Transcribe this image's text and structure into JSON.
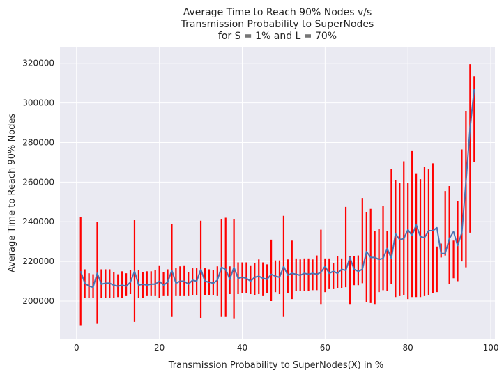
{
  "chart_data": {
    "type": "line",
    "title": [
      "Average Time to Reach 90% Nodes v/s",
      "Transmission Probability to SuperNodes",
      "for S = 1% and L = 70%"
    ],
    "xlabel": "Transmission Probability to SuperNodes(X) in %",
    "ylabel": "Average Time to Reach 90% Nodes",
    "xlim": [
      -4,
      101
    ],
    "ylim": [
      181000,
      328000
    ],
    "xticks": [
      0,
      20,
      40,
      60,
      80,
      100
    ],
    "yticks": [
      200000,
      220000,
      240000,
      260000,
      280000,
      300000,
      320000
    ],
    "xtick_labels": [
      "0",
      "20",
      "40",
      "60",
      "80",
      "100"
    ],
    "ytick_labels": [
      "200000",
      "220000",
      "240000",
      "260000",
      "280000",
      "300000",
      "320000"
    ],
    "grid": true,
    "colors": {
      "line": "#4c72b0",
      "errorbar": "#ff0000",
      "background": "#eaeaf2",
      "grid": "#ffffff"
    },
    "series": [
      {
        "x": [
          1,
          2,
          3,
          4,
          5,
          6,
          7,
          8,
          9,
          10,
          11,
          12,
          13,
          14,
          15,
          16,
          17,
          18,
          19,
          20,
          21,
          22,
          23,
          24,
          25,
          26,
          27,
          28,
          29,
          30,
          31,
          32,
          33,
          34,
          35,
          36,
          37,
          38,
          39,
          40,
          41,
          42,
          43,
          44,
          45,
          46,
          47,
          48,
          49,
          50,
          51,
          52,
          53,
          54,
          55,
          56,
          57,
          58,
          59,
          60,
          61,
          62,
          63,
          64,
          65,
          66,
          67,
          68,
          69,
          70,
          71,
          72,
          73,
          74,
          75,
          76,
          77,
          78,
          79,
          80,
          81,
          82,
          83,
          84,
          85,
          86,
          87,
          88,
          89,
          90,
          91,
          92,
          93,
          94,
          95,
          96
        ],
        "y": [
          215000,
          209000,
          207500,
          207000,
          214000,
          208500,
          209000,
          209000,
          208000,
          207500,
          208000,
          207500,
          209500,
          215000,
          208000,
          208500,
          208000,
          208500,
          208500,
          210000,
          208000,
          209500,
          215500,
          209000,
          210000,
          210000,
          208500,
          210500,
          210000,
          216000,
          210000,
          209500,
          209000,
          210500,
          217000,
          216000,
          211000,
          217000,
          211500,
          212000,
          211500,
          210000,
          212000,
          212500,
          211500,
          211000,
          213500,
          212500,
          212000,
          217500,
          213000,
          214000,
          213500,
          213000,
          214000,
          213500,
          214000,
          213500,
          214500,
          217500,
          214000,
          215000,
          214000,
          216000,
          215500,
          222000,
          216000,
          215000,
          216000,
          225000,
          222000,
          222000,
          221000,
          221500,
          226500,
          221500,
          234000,
          231000,
          231500,
          236000,
          233000,
          238500,
          232500,
          232000,
          235500,
          235500,
          237000,
          224000,
          224000,
          231500,
          235000,
          228000,
          234500,
          260000,
          287000,
          307000
        ],
        "yerr_low": [
          187500,
          201500,
          201500,
          201500,
          188500,
          201500,
          201500,
          201500,
          201500,
          202000,
          201500,
          202500,
          203500,
          189500,
          201500,
          201500,
          202500,
          202500,
          202500,
          201500,
          202500,
          202500,
          192000,
          202500,
          202500,
          202500,
          202500,
          203000,
          203000,
          191500,
          203000,
          203000,
          203000,
          202500,
          192000,
          192000,
          203500,
          191000,
          203500,
          204000,
          204000,
          203500,
          203000,
          203500,
          202500,
          204000,
          200000,
          204500,
          203500,
          192000,
          204000,
          201000,
          205000,
          205000,
          205000,
          205000,
          205500,
          205500,
          198500,
          204500,
          206000,
          206000,
          206500,
          206500,
          207000,
          198500,
          208000,
          208000,
          209000,
          199500,
          199000,
          198500,
          204500,
          205500,
          205000,
          208500,
          202000,
          202500,
          203000,
          201000,
          202000,
          202000,
          202000,
          202500,
          203000,
          204000,
          204500,
          222000,
          223000,
          208500,
          211500,
          210000,
          220000,
          217000,
          234500,
          270000
        ],
        "yerr_high": [
          242500,
          216000,
          214000,
          213500,
          240000,
          216000,
          216000,
          216000,
          214500,
          213500,
          215000,
          214000,
          215500,
          241000,
          215500,
          214500,
          215000,
          215000,
          215500,
          218000,
          214500,
          216000,
          239000,
          216500,
          217500,
          218000,
          214500,
          216500,
          216500,
          240500,
          216500,
          216000,
          215500,
          217500,
          241500,
          242000,
          217500,
          241500,
          219500,
          219500,
          219500,
          218000,
          219000,
          221000,
          219500,
          218500,
          231000,
          220500,
          220500,
          243000,
          221000,
          230500,
          221500,
          221000,
          221500,
          221500,
          221000,
          223000,
          236000,
          221500,
          221500,
          219000,
          222500,
          221500,
          247500,
          222500,
          222500,
          223000,
          252000,
          245000,
          246500,
          235500,
          236500,
          248000,
          235500,
          266500,
          261000,
          259500,
          270500,
          259500,
          276000,
          264500,
          261500,
          267500,
          266500,
          269500,
          227500,
          229000,
          255500,
          258000,
          230500,
          250500,
          276500,
          296000,
          319500,
          313500
        ]
      }
    ]
  }
}
